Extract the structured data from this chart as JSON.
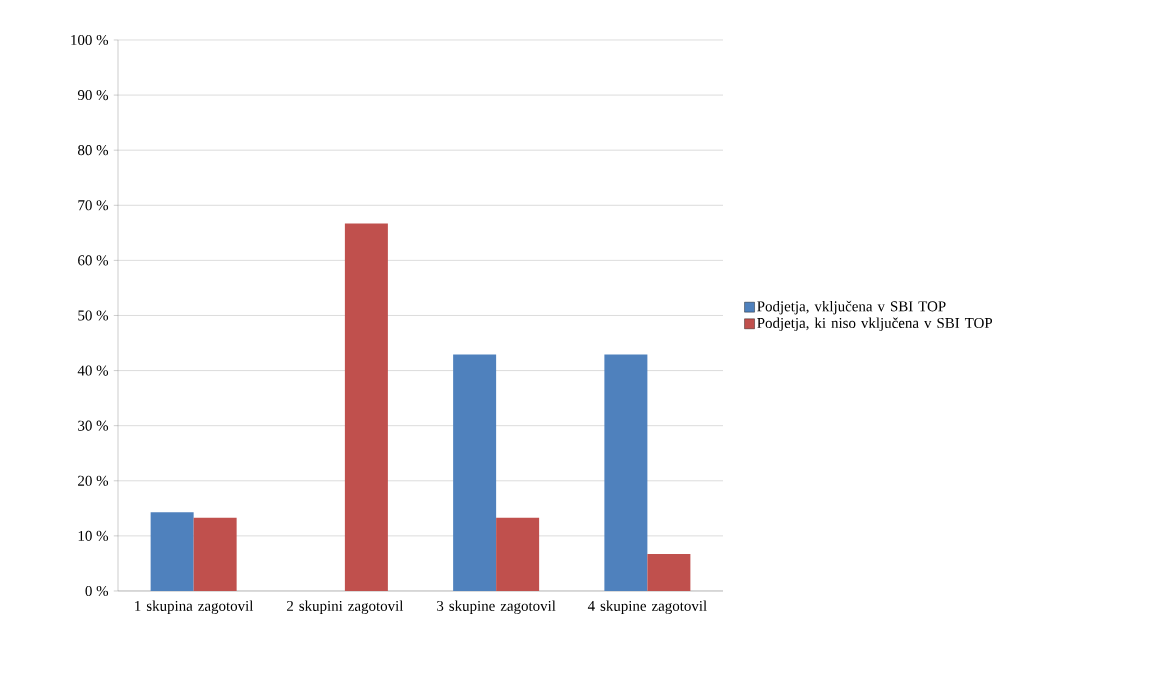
{
  "chart_data": {
    "type": "bar",
    "categories": [
      "1 skupina zagotovil",
      "2 skupini zagotovil",
      "3 skupine zagotovil",
      "4 skupine zagotovil"
    ],
    "series": [
      {
        "name": "Podjetja, vključena v SBI TOP",
        "color": "#4f81bd",
        "values": [
          14.3,
          0,
          42.9,
          42.9
        ]
      },
      {
        "name": "Podjetja, ki niso vključena v SBI TOP",
        "color": "#c0504d",
        "values": [
          13.3,
          66.7,
          13.3,
          6.7
        ]
      }
    ],
    "ylim": [
      0,
      100
    ],
    "yticks": [
      {
        "value": 0,
        "label": "0 %"
      },
      {
        "value": 10,
        "label": "10 %"
      },
      {
        "value": 20,
        "label": "20 %"
      },
      {
        "value": 30,
        "label": "30 %"
      },
      {
        "value": 40,
        "label": "40 %"
      },
      {
        "value": 50,
        "label": "50 %"
      },
      {
        "value": 60,
        "label": "60 %"
      },
      {
        "value": 70,
        "label": "70 %"
      },
      {
        "value": 80,
        "label": "80 %"
      },
      {
        "value": 90,
        "label": "90 %"
      },
      {
        "value": 100,
        "label": "100 %"
      }
    ],
    "grid": "y",
    "legend": "right"
  }
}
